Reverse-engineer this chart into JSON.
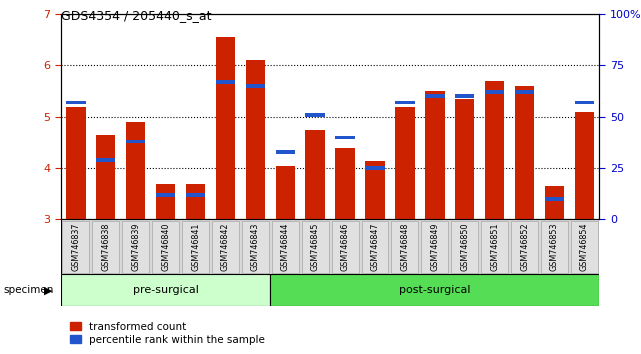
{
  "title": "GDS4354 / 205440_s_at",
  "samples": [
    "GSM746837",
    "GSM746838",
    "GSM746839",
    "GSM746840",
    "GSM746841",
    "GSM746842",
    "GSM746843",
    "GSM746844",
    "GSM746845",
    "GSM746846",
    "GSM746847",
    "GSM746848",
    "GSM746849",
    "GSM746850",
    "GSM746851",
    "GSM746852",
    "GSM746853",
    "GSM746854"
  ],
  "red_values": [
    5.2,
    4.65,
    4.9,
    3.7,
    3.7,
    6.55,
    6.1,
    4.05,
    4.75,
    4.4,
    4.13,
    5.2,
    5.5,
    5.35,
    5.7,
    5.6,
    3.65,
    5.1
  ],
  "blue_pct": [
    57,
    29,
    38,
    12,
    12,
    67,
    65,
    33,
    51,
    40,
    25,
    57,
    60,
    60,
    62,
    62,
    10,
    57
  ],
  "groups": {
    "pre-surgical": [
      0,
      7
    ],
    "post-surgical": [
      7,
      18
    ]
  },
  "ylim": [
    3,
    7
  ],
  "yticks_left": [
    3,
    4,
    5,
    6,
    7
  ],
  "yticks_right": [
    0,
    25,
    50,
    75,
    100
  ],
  "bar_color": "#cc2200",
  "blue_color": "#2255cc",
  "pre_surgical_color": "#ccffcc",
  "post_surgical_color": "#55dd55",
  "left_tick_color": "#cc2200",
  "right_tick_color": "#0000cc",
  "legend_red_label": "transformed count",
  "legend_blue_label": "percentile rank within the sample",
  "bar_width": 0.65,
  "blue_bar_height": 0.07
}
